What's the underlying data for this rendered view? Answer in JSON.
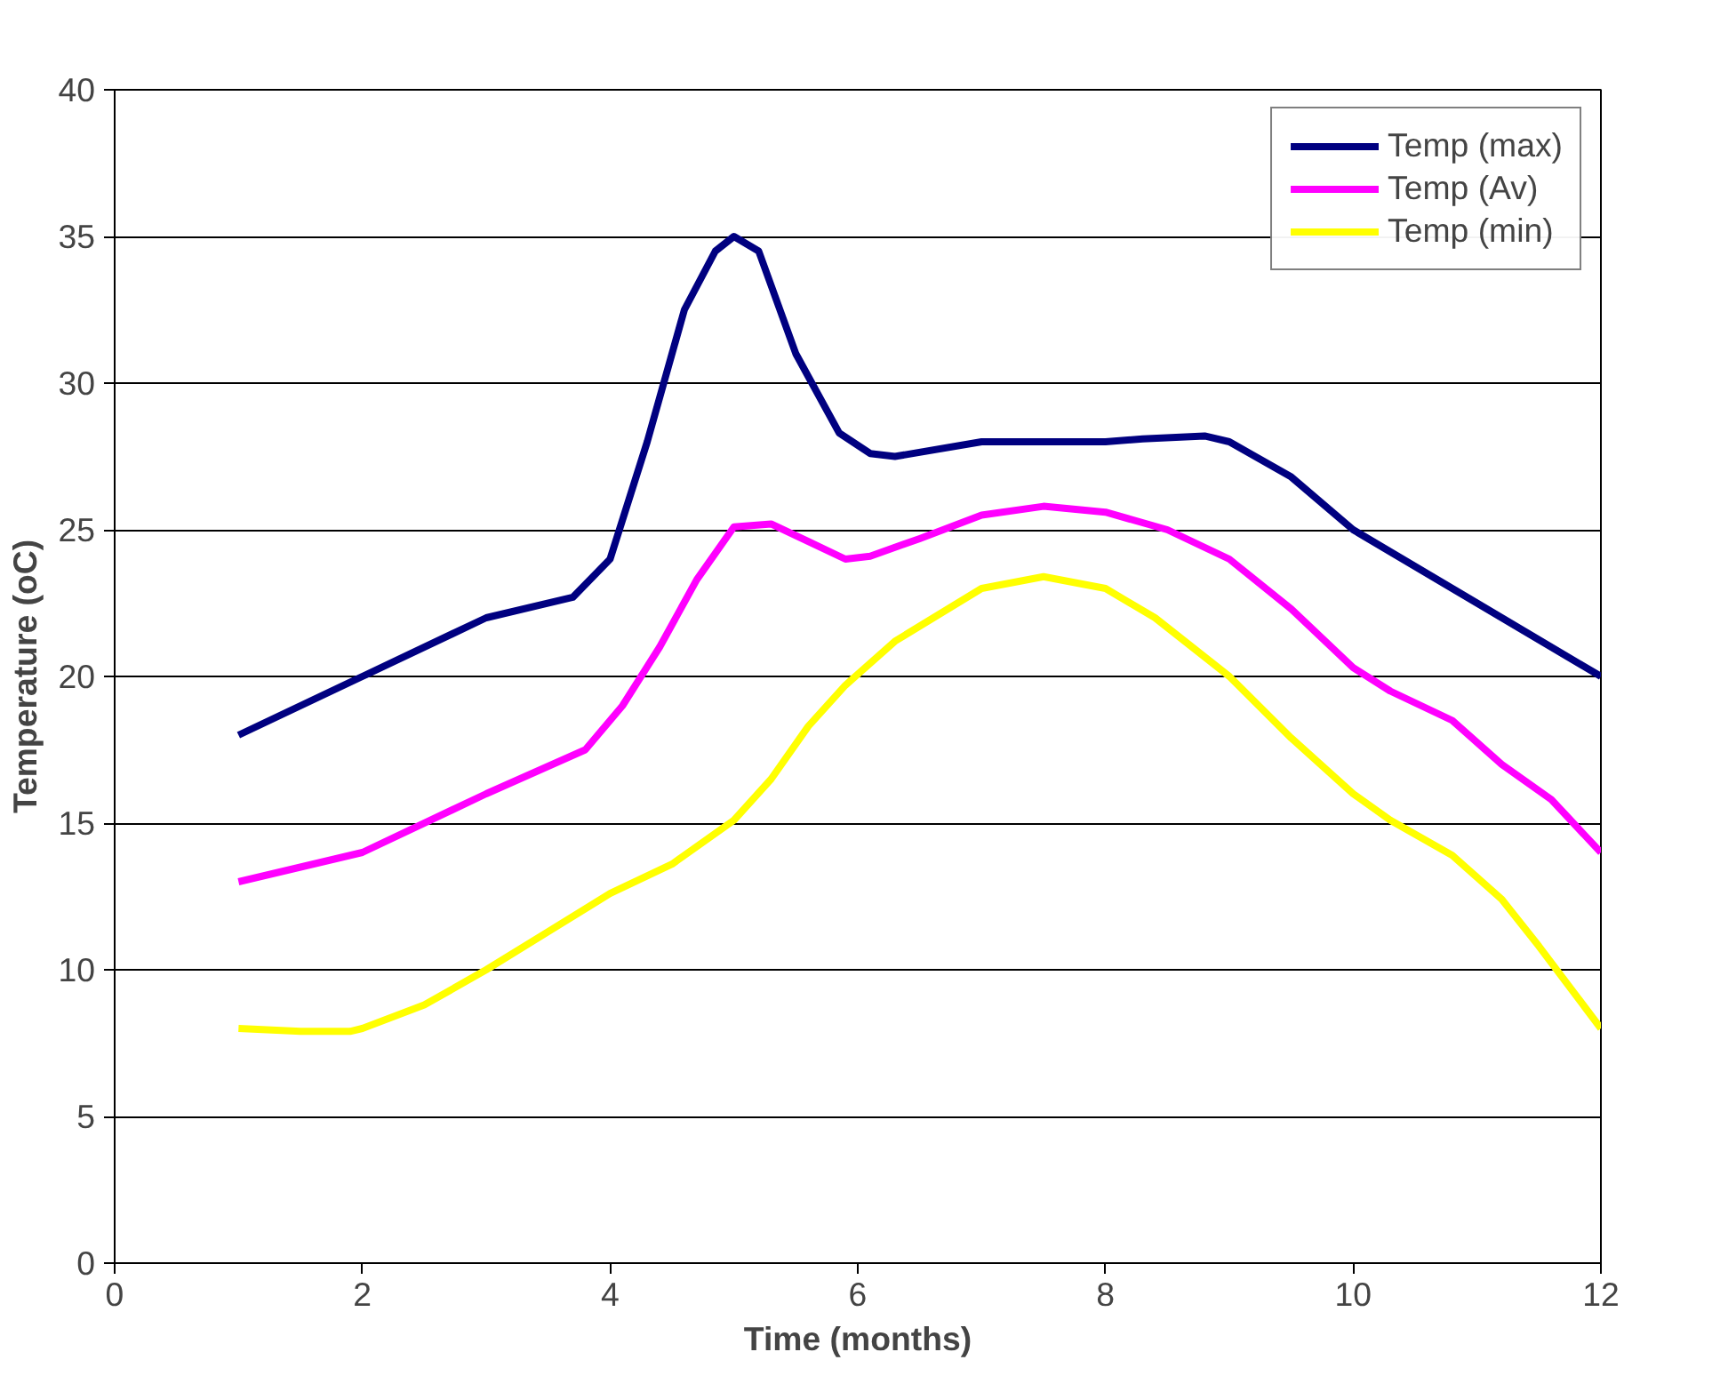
{
  "chart_data": {
    "type": "line",
    "xlabel": "Time (months)",
    "ylabel": "Temperature (oC)",
    "xlim": [
      0,
      12
    ],
    "xticks": [
      0,
      2,
      4,
      6,
      8,
      10,
      12
    ],
    "ylim": [
      0,
      40
    ],
    "yticks": [
      0,
      5,
      10,
      15,
      20,
      25,
      30,
      35,
      40
    ],
    "grid": "y",
    "legend": "top right",
    "marker": "none",
    "line_style": "solid",
    "series": [
      {
        "name": "Temp (max)",
        "color": "#000080",
        "x": [
          1,
          2,
          3,
          3.7,
          4,
          4.3,
          4.6,
          4.85,
          5,
          5.2,
          5.5,
          5.85,
          6.1,
          6.3,
          7,
          8,
          8.3,
          8.8,
          9,
          9.5,
          10,
          11,
          12
        ],
        "values": [
          18,
          20,
          22,
          22.7,
          24,
          28,
          32.5,
          34.5,
          35,
          34.5,
          31,
          28.3,
          27.6,
          27.5,
          28,
          28,
          28.1,
          28.2,
          28,
          26.8,
          25,
          22.5,
          20
        ]
      },
      {
        "name": "Temp (Av)",
        "color": "#ff00ff",
        "x": [
          1,
          2,
          3,
          3.8,
          4.1,
          4.4,
          4.7,
          5,
          5.3,
          5.6,
          5.9,
          6.1,
          6.5,
          7,
          7.5,
          8,
          8.5,
          9,
          9.5,
          10,
          10.3,
          10.8,
          11.2,
          11.6,
          12
        ],
        "values": [
          13,
          14,
          16,
          17.5,
          19,
          21,
          23.3,
          25.1,
          25.2,
          24.6,
          24,
          24.1,
          24.7,
          25.5,
          25.8,
          25.6,
          25,
          24,
          22.3,
          20.3,
          19.5,
          18.5,
          17,
          15.8,
          14
        ]
      },
      {
        "name": "Temp (min)",
        "color": "#ffff00",
        "x": [
          1,
          1.5,
          1.9,
          2,
          2.5,
          3,
          3.5,
          4,
          4.5,
          4.8,
          5,
          5.3,
          5.6,
          5.9,
          6.3,
          7,
          7.5,
          8,
          8.4,
          9,
          9.5,
          10,
          10.3,
          10.8,
          11.2,
          11.5,
          12
        ],
        "values": [
          8,
          7.9,
          7.9,
          8,
          8.8,
          10,
          11.3,
          12.6,
          13.6,
          14.5,
          15.1,
          16.5,
          18.3,
          19.7,
          21.2,
          23,
          23.4,
          23,
          22,
          20,
          17.9,
          16,
          15.1,
          13.9,
          12.4,
          10.8,
          8
        ]
      }
    ]
  }
}
